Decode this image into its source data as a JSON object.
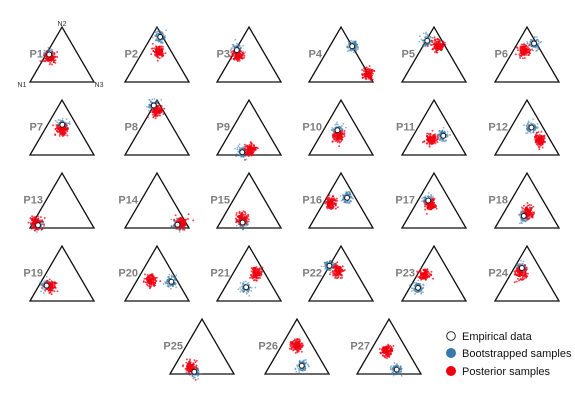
{
  "chart_data": {
    "type": "scatter",
    "kind": "ternary",
    "vertex_labels": {
      "top": "N2",
      "left": "N1",
      "right": "N3"
    },
    "coordinate_order": [
      "N1",
      "N2",
      "N3"
    ],
    "legend": {
      "empirical": "Empirical data",
      "bootstrapped": "Bootstrapped samples",
      "posterior": "Posterior samples"
    },
    "colors": {
      "empirical_fill": "#ffffff",
      "empirical_edge": "#111111",
      "bootstrapped": "#3a78a8",
      "posterior": "#f0000f"
    },
    "panels": [
      {
        "label": "P1",
        "empirical": [
          0.45,
          0.5,
          0.05
        ],
        "posterior": [
          0.47,
          0.44,
          0.09
        ]
      },
      {
        "label": "P2",
        "empirical": [
          0.04,
          0.82,
          0.14
        ],
        "posterior": [
          0.19,
          0.56,
          0.25
        ]
      },
      {
        "label": "P3",
        "empirical": [
          0.4,
          0.58,
          0.02
        ],
        "posterior": [
          0.43,
          0.48,
          0.09
        ]
      },
      {
        "label": "P4",
        "empirical": [
          0.0,
          0.65,
          0.35
        ],
        "posterior": [
          0.0,
          0.15,
          0.85
        ]
      },
      {
        "label": "P5",
        "empirical": [
          0.23,
          0.75,
          0.02
        ],
        "posterior": [
          0.11,
          0.66,
          0.23
        ]
      },
      {
        "label": "P6",
        "empirical": [
          0.04,
          0.7,
          0.26
        ],
        "posterior": [
          0.26,
          0.57,
          0.17
        ]
      },
      {
        "label": "P7",
        "empirical": [
          0.22,
          0.55,
          0.23
        ],
        "posterior": [
          0.27,
          0.46,
          0.27
        ]
      },
      {
        "label": "P8",
        "empirical": [
          0.1,
          0.9,
          0.0
        ],
        "posterior": [
          0.1,
          0.8,
          0.1
        ]
      },
      {
        "label": "P9",
        "empirical": [
          0.58,
          0.05,
          0.37
        ],
        "posterior": [
          0.43,
          0.1,
          0.47
        ]
      },
      {
        "label": "P10",
        "empirical": [
          0.33,
          0.45,
          0.22
        ],
        "posterior": [
          0.37,
          0.35,
          0.28
        ]
      },
      {
        "label": "P11",
        "empirical": [
          0.18,
          0.35,
          0.47
        ],
        "posterior": [
          0.41,
          0.28,
          0.31
        ]
      },
      {
        "label": "P12",
        "empirical": [
          0.18,
          0.5,
          0.32
        ],
        "posterior": [
          0.15,
          0.28,
          0.57
        ]
      },
      {
        "label": "P13",
        "empirical": [
          0.85,
          0.05,
          0.1
        ],
        "posterior": [
          0.86,
          0.09,
          0.05
        ]
      },
      {
        "label": "P14",
        "empirical": [
          0.15,
          0.06,
          0.79
        ],
        "posterior": [
          0.07,
          0.09,
          0.84
        ]
      },
      {
        "label": "P15",
        "empirical": [
          0.55,
          0.1,
          0.35
        ],
        "posterior": [
          0.52,
          0.18,
          0.3
        ]
      },
      {
        "label": "P16",
        "empirical": [
          0.13,
          0.55,
          0.32
        ],
        "posterior": [
          0.43,
          0.45,
          0.12
        ]
      },
      {
        "label": "P17",
        "empirical": [
          0.34,
          0.5,
          0.16
        ],
        "posterior": [
          0.35,
          0.42,
          0.23
        ]
      },
      {
        "label": "P18",
        "empirical": [
          0.44,
          0.22,
          0.34
        ],
        "posterior": [
          0.34,
          0.28,
          0.38
        ]
      },
      {
        "label": "P19",
        "empirical": [
          0.6,
          0.28,
          0.12
        ],
        "posterior": [
          0.54,
          0.27,
          0.19
        ]
      },
      {
        "label": "P20",
        "empirical": [
          0.1,
          0.35,
          0.55
        ],
        "posterior": [
          0.41,
          0.38,
          0.21
        ]
      },
      {
        "label": "P21",
        "empirical": [
          0.42,
          0.25,
          0.33
        ],
        "posterior": [
          0.14,
          0.5,
          0.36
        ]
      },
      {
        "label": "P22",
        "empirical": [
          0.36,
          0.64,
          0.0
        ],
        "posterior": [
          0.27,
          0.55,
          0.18
        ]
      },
      {
        "label": "P23",
        "empirical": [
          0.63,
          0.24,
          0.13
        ],
        "posterior": [
          0.42,
          0.47,
          0.11
        ]
      },
      {
        "label": "P24",
        "empirical": [
          0.28,
          0.6,
          0.12
        ],
        "posterior": [
          0.34,
          0.51,
          0.15
        ]
      },
      {
        "label": "P25",
        "empirical": [
          0.6,
          0.04,
          0.36
        ],
        "posterior": [
          0.62,
          0.12,
          0.26
        ]
      },
      {
        "label": "P26",
        "empirical": [
          0.35,
          0.15,
          0.5
        ],
        "posterior": [
          0.25,
          0.52,
          0.23
        ]
      },
      {
        "label": "P27",
        "empirical": [
          0.34,
          0.08,
          0.58
        ],
        "posterior": [
          0.32,
          0.42,
          0.26
        ]
      }
    ]
  }
}
